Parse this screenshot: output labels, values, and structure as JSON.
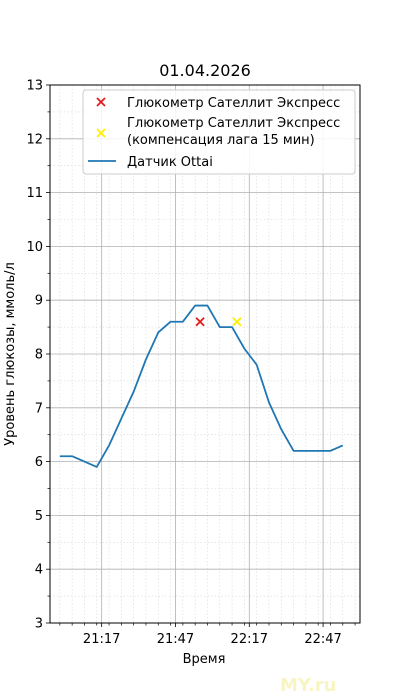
{
  "chart_data": {
    "type": "line",
    "title": "01.04.2026",
    "xlabel": "Время",
    "ylabel": "Уровень глюкозы, ммоль/л",
    "xlim": [
      "20:56",
      "23:02"
    ],
    "ylim": [
      3,
      13
    ],
    "y_ticks": [
      3,
      4,
      5,
      6,
      7,
      8,
      9,
      10,
      11,
      12,
      13
    ],
    "x_ticks": [
      "21:17",
      "21:47",
      "22:17",
      "22:47"
    ],
    "grid": true,
    "minor_grid": true,
    "legend_position": "top-right",
    "series": [
      {
        "name": "Глюкометр Сателлит Экспресс",
        "kind": "scatter",
        "marker": "x",
        "color": "#e31a1c",
        "points": [
          {
            "x": "21:57",
            "y": 8.6
          }
        ]
      },
      {
        "name": "Глюкометр Сателлит Экспресс\n(компенсация лага 15 мин)",
        "kind": "scatter",
        "marker": "x",
        "color": "#ffee00",
        "points": [
          {
            "x": "22:12",
            "y": 8.6
          }
        ]
      },
      {
        "name": "Датчик Ottai",
        "kind": "line",
        "color": "#1f77b4",
        "points": [
          {
            "x": "21:00",
            "y": 6.1
          },
          {
            "x": "21:05",
            "y": 6.1
          },
          {
            "x": "21:10",
            "y": 6.0
          },
          {
            "x": "21:15",
            "y": 5.9
          },
          {
            "x": "21:20",
            "y": 6.3
          },
          {
            "x": "21:25",
            "y": 6.8
          },
          {
            "x": "21:30",
            "y": 7.3
          },
          {
            "x": "21:35",
            "y": 7.9
          },
          {
            "x": "21:40",
            "y": 8.4
          },
          {
            "x": "21:45",
            "y": 8.6
          },
          {
            "x": "21:50",
            "y": 8.6
          },
          {
            "x": "21:55",
            "y": 8.9
          },
          {
            "x": "22:00",
            "y": 8.9
          },
          {
            "x": "22:05",
            "y": 8.5
          },
          {
            "x": "22:10",
            "y": 8.5
          },
          {
            "x": "22:15",
            "y": 8.1
          },
          {
            "x": "22:20",
            "y": 7.8
          },
          {
            "x": "22:25",
            "y": 7.1
          },
          {
            "x": "22:30",
            "y": 6.6
          },
          {
            "x": "22:35",
            "y": 6.2
          },
          {
            "x": "22:40",
            "y": 6.2
          },
          {
            "x": "22:45",
            "y": 6.2
          },
          {
            "x": "22:50",
            "y": 6.2
          },
          {
            "x": "22:55",
            "y": 6.3
          }
        ]
      }
    ]
  },
  "watermark": "MY.ru"
}
